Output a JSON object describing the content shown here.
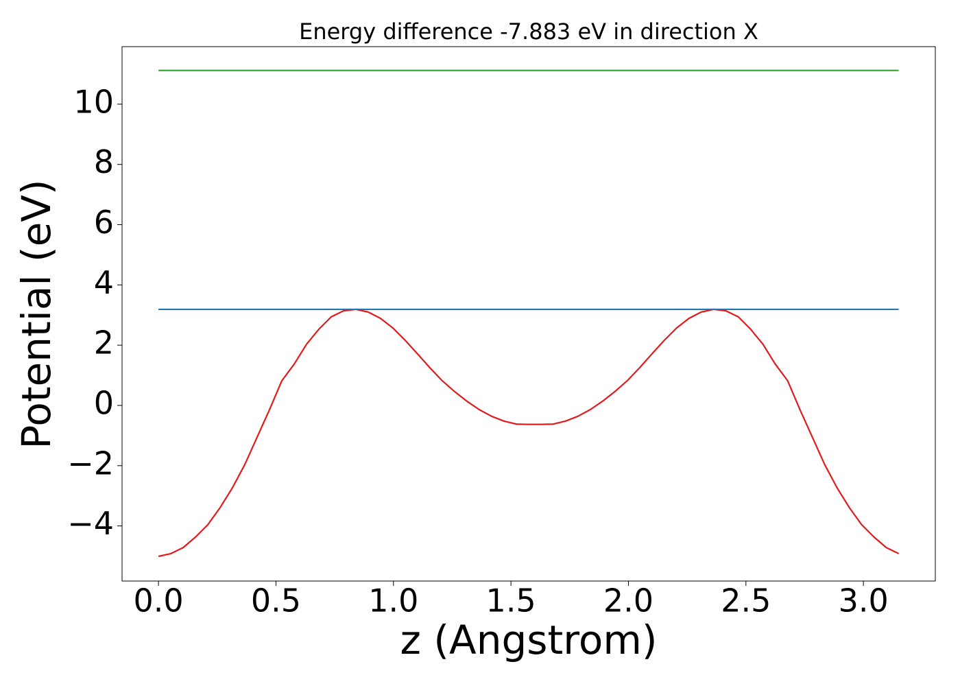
{
  "chart_data": {
    "type": "line",
    "title": "Energy difference -7.883 eV in direction X",
    "xlabel": "z (Angstrom)",
    "ylabel": "Potential (eV)",
    "xlim": [
      -0.155,
      3.306
    ],
    "ylim": [
      -5.83,
      11.91
    ],
    "xticks": [
      {
        "value": 0,
        "label": "0.0"
      },
      0.5,
      {
        "value": 1,
        "label": "1.0"
      },
      1.5,
      {
        "value": 2,
        "label": "2.0"
      },
      2.5,
      {
        "value": 3,
        "label": "3.0"
      }
    ],
    "yticks": [
      {
        "value": -4,
        "label": "−4"
      },
      {
        "value": -2,
        "label": "−2"
      },
      0,
      2,
      4,
      6,
      8,
      10
    ],
    "grid": false,
    "series": [
      {
        "color": "#e31a1c",
        "x": [
          0,
          0.0525,
          0.105,
          0.1575,
          0.21,
          0.2625,
          0.315,
          0.3675,
          0.42,
          0.4725,
          0.525,
          0.5775,
          0.63,
          0.6825,
          0.735,
          0.7875,
          0.84,
          0.8925,
          0.945,
          0.9975,
          1.05,
          1.1025,
          1.155,
          1.2075,
          1.26,
          1.3125,
          1.365,
          1.4175,
          1.47,
          1.5225,
          1.575,
          1.6275,
          1.68,
          1.7325,
          1.785,
          1.8375,
          1.89,
          1.9425,
          1.995,
          2.0475,
          2.1,
          2.1525,
          2.205,
          2.2575,
          2.31,
          2.3625,
          2.415,
          2.4675,
          2.52,
          2.5725,
          2.625,
          2.6775,
          2.73,
          2.7825,
          2.835,
          2.8875,
          2.94,
          2.9925,
          3.045,
          3.0975,
          3.15
        ],
        "values": [
          -5.01,
          -4.92,
          -4.72,
          -4.37,
          -3.96,
          -3.39,
          -2.73,
          -1.96,
          -1.05,
          -0.14,
          0.82,
          1.37,
          2.03,
          2.53,
          2.94,
          3.14,
          3.19,
          3.1,
          2.89,
          2.57,
          2.16,
          1.71,
          1.25,
          0.82,
          0.46,
          0.14,
          -0.14,
          -0.36,
          -0.52,
          -0.62,
          -0.63,
          -0.63,
          -0.62,
          -0.52,
          -0.36,
          -0.14,
          0.14,
          0.46,
          0.82,
          1.25,
          1.71,
          2.16,
          2.57,
          2.89,
          3.1,
          3.19,
          3.14,
          2.94,
          2.53,
          2.03,
          1.37,
          0.82,
          -0.14,
          -1.05,
          -1.96,
          -2.73,
          -3.39,
          -3.96,
          -4.37,
          -4.72,
          -4.92
        ]
      },
      {
        "color": "#1f77b4",
        "x": [
          0,
          3.15
        ],
        "values": [
          3.19,
          3.19
        ]
      },
      {
        "color": "#2ca02c",
        "x": [
          0,
          3.15
        ],
        "values": [
          11.12,
          11.12
        ]
      }
    ]
  }
}
